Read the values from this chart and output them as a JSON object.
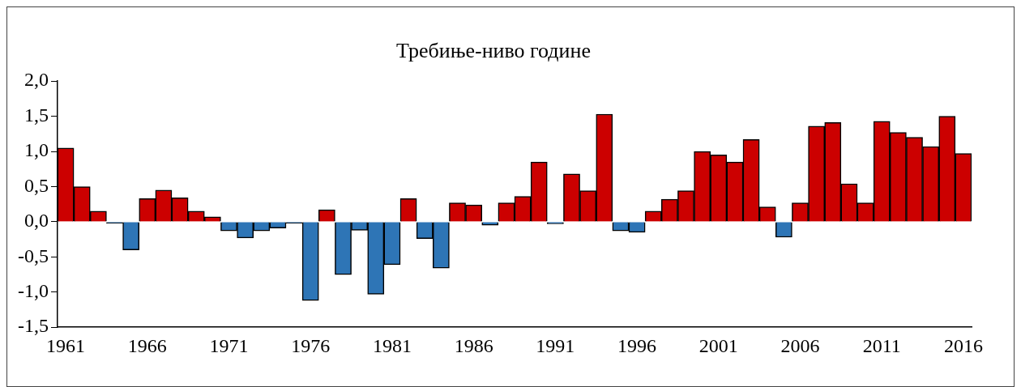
{
  "chart_data": {
    "type": "bar",
    "title": "Требиње-ниво године",
    "categories": [
      "1961",
      null,
      null,
      null,
      null,
      "1966",
      null,
      null,
      null,
      null,
      "1971",
      null,
      null,
      null,
      null,
      "1976",
      null,
      null,
      null,
      null,
      "1981",
      null,
      null,
      null,
      null,
      "1986",
      null,
      null,
      null,
      null,
      "1991",
      null,
      null,
      null,
      null,
      "1996",
      null,
      null,
      null,
      null,
      "2001",
      null,
      null,
      null,
      null,
      "2006",
      null,
      null,
      null,
      null,
      "2011",
      null,
      null,
      null,
      null,
      "2016"
    ],
    "values": [
      1.05,
      0.5,
      0.15,
      -0.02,
      -0.4,
      0.33,
      0.45,
      0.34,
      0.15,
      0.07,
      -0.13,
      -0.23,
      -0.13,
      -0.09,
      -0.02,
      -1.12,
      0.17,
      -0.75,
      -0.12,
      -1.03,
      -0.61,
      0.33,
      -0.24,
      -0.66,
      0.27,
      0.24,
      -0.05,
      0.27,
      0.36,
      0.85,
      -0.03,
      0.68,
      0.44,
      1.53,
      -0.13,
      -0.15,
      0.15,
      0.32,
      0.44,
      1.0,
      0.95,
      0.85,
      1.17,
      0.21,
      -0.22,
      0.27,
      1.36,
      1.41,
      0.54,
      0.27,
      1.43,
      1.27,
      1.2,
      1.07,
      1.5,
      0.97
    ],
    "colors": [
      "#cc0000",
      "#cc0000",
      "#cc0000",
      "#2e75b6",
      "#2e75b6",
      "#cc0000",
      "#cc0000",
      "#cc0000",
      "#cc0000",
      "#cc0000",
      "#2e75b6",
      "#2e75b6",
      "#2e75b6",
      "#2e75b6",
      "#2e75b6",
      "#2e75b6",
      "#cc0000",
      "#2e75b6",
      "#2e75b6",
      "#2e75b6",
      "#2e75b6",
      "#cc0000",
      "#2e75b6",
      "#2e75b6",
      "#cc0000",
      "#cc0000",
      "#2e75b6",
      "#cc0000",
      "#cc0000",
      "#cc0000",
      "#2e75b6",
      "#cc0000",
      "#cc0000",
      "#cc0000",
      "#2e75b6",
      "#2e75b6",
      "#cc0000",
      "#cc0000",
      "#cc0000",
      "#cc0000",
      "#cc0000",
      "#cc0000",
      "#cc0000",
      "#cc0000",
      "#2e75b6",
      "#cc0000",
      "#cc0000",
      "#cc0000",
      "#cc0000",
      "#cc0000",
      "#cc0000",
      "#cc0000",
      "#cc0000",
      "#cc0000",
      "#cc0000",
      "#cc0000"
    ],
    "ylim": [
      -1.5,
      2.0
    ],
    "yticks": [
      {
        "value": -1.5,
        "label": "-1,5"
      },
      {
        "value": -1.0,
        "label": "-1,0"
      },
      {
        "value": -0.5,
        "label": "-0,5"
      },
      {
        "value": 0,
        "label": "0,0"
      },
      {
        "value": 0.5,
        "label": "0,5"
      },
      {
        "value": 1.0,
        "label": "1,0"
      },
      {
        "value": 1.5,
        "label": "1,5"
      },
      {
        "value": 2.0,
        "label": "2,0"
      }
    ],
    "grid": false,
    "legend": false
  }
}
